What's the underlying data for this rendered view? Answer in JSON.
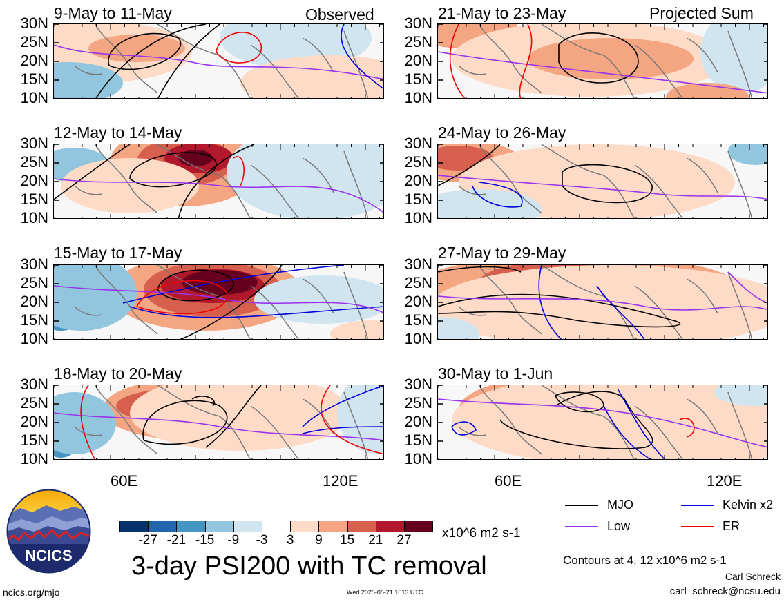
{
  "figure": {
    "title": "3-day PSI200 with TC removal",
    "units": "x10^6 m2 s-1",
    "contour_note": "Contours at 4, 12 x10^6 m2 s-1",
    "author": "Carl Schreck",
    "email": "carl_schreck@ncsu.edu",
    "site": "ncics.org/mjo",
    "timestamp": "Wed 2025-05-21 1013 UTC",
    "logo_text": "NCICS"
  },
  "columns": {
    "left_label": "Observed",
    "right_label": "Projected Sum"
  },
  "panels_left": [
    {
      "title": "9-May to 11-May"
    },
    {
      "title": "12-May to 14-May"
    },
    {
      "title": "15-May to 17-May"
    },
    {
      "title": "18-May to 20-May"
    }
  ],
  "panels_right": [
    {
      "title": "21-May to 23-May"
    },
    {
      "title": "24-May to 26-May"
    },
    {
      "title": "27-May to 29-May"
    },
    {
      "title": "30-May to 1-Jun"
    }
  ],
  "lat_labels": [
    "30N",
    "25N",
    "20N",
    "15N",
    "10N"
  ],
  "lon_labels": [
    "60E",
    "120E"
  ],
  "colorbar": {
    "labels": [
      "-27",
      "-21",
      "-15",
      "-9",
      "-3",
      "3",
      "9",
      "15",
      "21",
      "27"
    ],
    "colors": [
      "#08306b",
      "#2166ac",
      "#4393c3",
      "#92c5de",
      "#d1e5f0",
      "#ffffff",
      "#fddbc7",
      "#f4a582",
      "#d6604d",
      "#b2182b",
      "#67001f"
    ]
  },
  "legend": [
    {
      "label": "MJO",
      "color": "#000000"
    },
    {
      "label": "Kelvin x2",
      "color": "#0000dd"
    },
    {
      "label": "Low",
      "color": "#9933ee"
    },
    {
      "label": "ER",
      "color": "#ee0000"
    }
  ]
}
